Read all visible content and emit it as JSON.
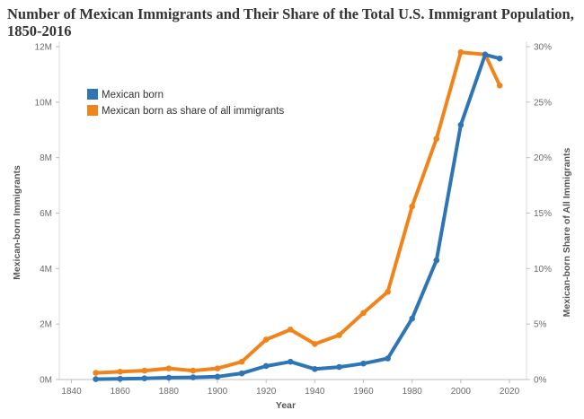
{
  "chart_data": {
    "type": "line",
    "title": "Number of Mexican Immigrants and Their Share of the Total U.S. Immigrant Population, 1850-2016",
    "xlabel": "Year",
    "ylabel": "Mexican-born Immigrants",
    "y2label": "Mexican-born Share of All Immigrants",
    "x": [
      1850,
      1860,
      1870,
      1880,
      1890,
      1900,
      1910,
      1920,
      1930,
      1940,
      1950,
      1960,
      1970,
      1980,
      1990,
      2000,
      2010,
      2016
    ],
    "xlim": [
      1835,
      2027
    ],
    "ylim": [
      0,
      12000000
    ],
    "y2lim": [
      0,
      30
    ],
    "xticks": [
      {
        "value": 1840,
        "label": "1840"
      },
      {
        "value": 1860,
        "label": "1860"
      },
      {
        "value": 1880,
        "label": "1880"
      },
      {
        "value": 1900,
        "label": "1900"
      },
      {
        "value": 1920,
        "label": "1920"
      },
      {
        "value": 1940,
        "label": "1940"
      },
      {
        "value": 1960,
        "label": "1960"
      },
      {
        "value": 1980,
        "label": "1980"
      },
      {
        "value": 2000,
        "label": "2000"
      },
      {
        "value": 2020,
        "label": "2020"
      }
    ],
    "yticks": [
      {
        "value": 0,
        "label": "0M"
      },
      {
        "value": 2000000,
        "label": "2M"
      },
      {
        "value": 4000000,
        "label": "4M"
      },
      {
        "value": 6000000,
        "label": "6M"
      },
      {
        "value": 8000000,
        "label": "8M"
      },
      {
        "value": 10000000,
        "label": "10M"
      },
      {
        "value": 12000000,
        "label": "12M"
      }
    ],
    "y2ticks": [
      {
        "value": 0,
        "label": "0%"
      },
      {
        "value": 5,
        "label": "5%"
      },
      {
        "value": 10,
        "label": "10%"
      },
      {
        "value": 15,
        "label": "15%"
      },
      {
        "value": 20,
        "label": "20%"
      },
      {
        "value": 25,
        "label": "25%"
      },
      {
        "value": 30,
        "label": "30%"
      }
    ],
    "series": [
      {
        "name": "Mexican born",
        "axis": "left",
        "color": "#2e75b6",
        "values": [
          13000,
          27000,
          42000,
          68000,
          78000,
          103000,
          222000,
          486000,
          641000,
          377000,
          451000,
          576000,
          760000,
          2199000,
          4298000,
          9178000,
          11712000,
          11574000
        ]
      },
      {
        "name": "Mexican born as share of all immigrants",
        "axis": "right",
        "color": "#f0841b",
        "values": [
          0.6,
          0.7,
          0.8,
          1.0,
          0.8,
          1.0,
          1.6,
          3.6,
          4.5,
          3.2,
          4.0,
          6.0,
          7.9,
          15.6,
          21.7,
          29.5,
          29.3,
          26.5
        ]
      }
    ],
    "legend": "top-left"
  }
}
